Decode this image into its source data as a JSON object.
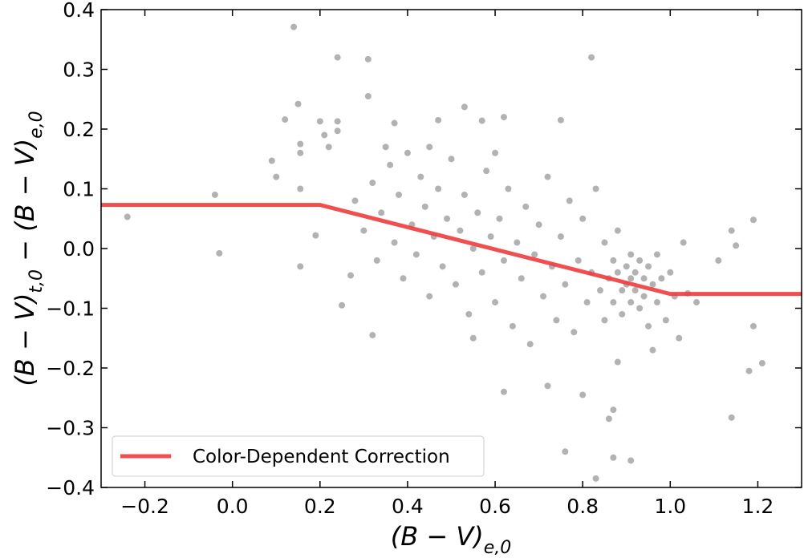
{
  "chart_data": {
    "type": "scatter",
    "xlabel": [
      "(B − V)",
      "e,0"
    ],
    "ylabel": [
      "(B − V)",
      "t,0",
      " − (B − V)",
      "e,0"
    ],
    "xlim": [
      -0.3,
      1.3
    ],
    "ylim": [
      -0.4,
      0.4
    ],
    "xticks": [
      {
        "value": -0.2,
        "label": "−0.2"
      },
      {
        "value": 0,
        "label": "0.0"
      },
      0.2,
      0.4,
      0.6,
      0.8,
      {
        "value": 1,
        "label": "1.0"
      },
      1.2
    ],
    "yticks": [
      {
        "value": -0.4,
        "label": "−0.4"
      },
      {
        "value": -0.3,
        "label": "−0.3"
      },
      {
        "value": -0.2,
        "label": "−0.2"
      },
      {
        "value": -0.1,
        "label": "−0.1"
      },
      {
        "value": 0,
        "label": "0.0"
      },
      0.1,
      0.2,
      0.3,
      0.4
    ],
    "legend": "lower left",
    "series": [
      {
        "type": "scatter",
        "color": "#000000",
        "x": [
          -0.24,
          -0.04,
          -0.03,
          0.09,
          0.1,
          0.12,
          0.14,
          0.15,
          0.155,
          0.155,
          0.155,
          0.155,
          0.19,
          0.2,
          0.21,
          0.22,
          0.24,
          0.24,
          0.24,
          0.25,
          0.27,
          0.31,
          0.31,
          0.32,
          0.35,
          0.37,
          0.47,
          0.53,
          0.57,
          0.62,
          0.75,
          0.82,
          0.83,
          0.87,
          0.91,
          0.87,
          0.86,
          0.8,
          0.72,
          0.76,
          0.62,
          1.11,
          1.14,
          1.15,
          1.19,
          1.19,
          1.18,
          1.21,
          1.14,
          1.06,
          1.04,
          0.28,
          0.3,
          0.32,
          0.33,
          0.34,
          0.36,
          0.37,
          0.38,
          0.39,
          0.4,
          0.41,
          0.42,
          0.43,
          0.44,
          0.45,
          0.46,
          0.47,
          0.48,
          0.49,
          0.5,
          0.51,
          0.52,
          0.53,
          0.54,
          0.55,
          0.56,
          0.57,
          0.58,
          0.59,
          0.6,
          0.61,
          0.62,
          0.63,
          0.64,
          0.65,
          0.66,
          0.67,
          0.68,
          0.69,
          0.7,
          0.71,
          0.72,
          0.73,
          0.74,
          0.75,
          0.76,
          0.77,
          0.78,
          0.79,
          0.8,
          0.81,
          0.82,
          0.83,
          0.84,
          0.85,
          0.85,
          0.86,
          0.87,
          0.87,
          0.88,
          0.88,
          0.89,
          0.89,
          0.9,
          0.9,
          0.91,
          0.91,
          0.91,
          0.92,
          0.92,
          0.93,
          0.93,
          0.94,
          0.94,
          0.95,
          0.95,
          0.96,
          0.97,
          0.97,
          0.98,
          0.99,
          1.0,
          1.01,
          1.02,
          1.03,
          0.96,
          0.88,
          0.55,
          0.45,
          0.6
        ],
        "values": [
          0.053,
          0.09,
          -0.008,
          0.147,
          0.12,
          0.216,
          0.371,
          0.242,
          0.175,
          0.16,
          0.1,
          -0.03,
          0.022,
          0.213,
          0.19,
          0.17,
          0.32,
          0.213,
          0.197,
          -0.095,
          -0.045,
          0.317,
          0.255,
          -0.145,
          0.17,
          0.21,
          0.215,
          0.237,
          0.214,
          0.22,
          0.215,
          0.32,
          -0.385,
          -0.35,
          -0.355,
          -0.27,
          -0.285,
          -0.245,
          -0.23,
          -0.34,
          -0.24,
          -0.02,
          0.03,
          0.005,
          0.048,
          -0.13,
          -0.205,
          -0.192,
          -0.283,
          -0.09,
          -0.075,
          0.08,
          0.03,
          0.11,
          -0.02,
          0.06,
          0.14,
          0.01,
          0.09,
          -0.05,
          0.16,
          0.04,
          -0.01,
          0.12,
          0.07,
          -0.08,
          0.02,
          0.1,
          -0.03,
          0.05,
          0.15,
          -0.06,
          0.03,
          0.09,
          -0.11,
          0.0,
          0.06,
          -0.04,
          0.13,
          0.02,
          -0.09,
          0.05,
          -0.02,
          0.1,
          -0.13,
          0.01,
          -0.05,
          0.07,
          -0.16,
          -0.01,
          0.04,
          -0.08,
          0.12,
          -0.03,
          -0.12,
          0.02,
          -0.06,
          0.08,
          -0.14,
          -0.02,
          0.05,
          -0.09,
          -0.04,
          0.1,
          -0.07,
          -0.12,
          0.01,
          -0.05,
          -0.02,
          -0.09,
          -0.04,
          0.03,
          -0.07,
          -0.11,
          -0.03,
          -0.06,
          -0.05,
          -0.01,
          -0.09,
          -0.04,
          -0.07,
          -0.02,
          -0.1,
          -0.05,
          -0.08,
          -0.03,
          -0.13,
          -0.06,
          -0.01,
          -0.09,
          -0.05,
          -0.12,
          -0.04,
          -0.08,
          -0.15,
          0.01,
          -0.17,
          -0.19,
          -0.15,
          0.17,
          0.16
        ]
      },
      {
        "type": "line",
        "name": "Color-Dependent Correction",
        "color": "#f03c3c",
        "x": [
          -0.3,
          0.2,
          1.0,
          1.3
        ],
        "values": [
          0.073,
          0.073,
          -0.076,
          -0.076
        ]
      }
    ]
  }
}
